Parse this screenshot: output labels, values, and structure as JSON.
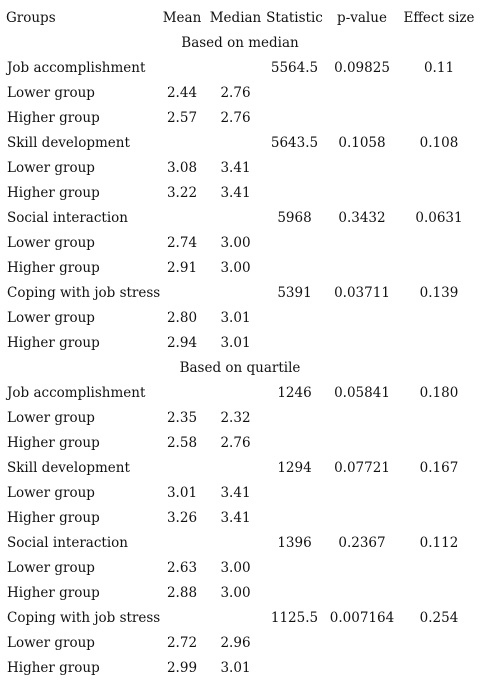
{
  "headers": [
    "Groups",
    "Mean",
    "Median",
    "Statistic",
    "p-value",
    "Effect size"
  ],
  "sections": [
    {
      "title": "Based on median",
      "factors": [
        {
          "name": "Job accomplishment",
          "statistic": "5564.5",
          "p_value": "0.09825",
          "effect_size": "0.11",
          "groups": [
            {
              "label": "Lower group",
              "mean": "2.44",
              "median": "2.76"
            },
            {
              "label": "Higher group",
              "mean": "2.57",
              "median": "2.76"
            }
          ]
        },
        {
          "name": "Skill development",
          "statistic": "5643.5",
          "p_value": "0.1058",
          "effect_size": "0.108",
          "groups": [
            {
              "label": "Lower group",
              "mean": "3.08",
              "median": "3.41"
            },
            {
              "label": "Higher group",
              "mean": "3.22",
              "median": "3.41"
            }
          ]
        },
        {
          "name": "Social interaction",
          "statistic": "5968",
          "p_value": "0.3432",
          "effect_size": "0.0631",
          "groups": [
            {
              "label": "Lower group",
              "mean": "2.74",
              "median": "3.00"
            },
            {
              "label": "Higher group",
              "mean": "2.91",
              "median": "3.00"
            }
          ]
        },
        {
          "name": "Coping with job stress",
          "statistic": "5391",
          "p_value": "0.03711",
          "effect_size": "0.139",
          "groups": [
            {
              "label": "Lower group",
              "mean": "2.80",
              "median": "3.01"
            },
            {
              "label": "Higher group",
              "mean": "2.94",
              "median": "3.01"
            }
          ]
        }
      ]
    },
    {
      "title": "Based on quartile",
      "factors": [
        {
          "name": "Job accomplishment",
          "statistic": "1246",
          "p_value": "0.05841",
          "effect_size": "0.180",
          "groups": [
            {
              "label": "Lower group",
              "mean": "2.35",
              "median": "2.32"
            },
            {
              "label": "Higher group",
              "mean": "2.58",
              "median": "2.76"
            }
          ]
        },
        {
          "name": "Skill development",
          "statistic": "1294",
          "p_value": "0.07721",
          "effect_size": "0.167",
          "groups": [
            {
              "label": "Lower group",
              "mean": "3.01",
              "median": "3.41"
            },
            {
              "label": "Higher group",
              "mean": "3.26",
              "median": "3.41"
            }
          ]
        },
        {
          "name": "Social interaction",
          "statistic": "1396",
          "p_value": "0.2367",
          "effect_size": "0.112",
          "groups": [
            {
              "label": "Lower group",
              "mean": "2.63",
              "median": "3.00"
            },
            {
              "label": "Higher group",
              "mean": "2.88",
              "median": "3.00"
            }
          ]
        },
        {
          "name": "Coping with job stress",
          "statistic": "1125.5",
          "p_value": "0.007164",
          "effect_size": "0.254",
          "groups": [
            {
              "label": "Lower group",
              "mean": "2.72",
              "median": "2.96"
            },
            {
              "label": "Higher group",
              "mean": "2.99",
              "median": "3.01"
            }
          ]
        }
      ]
    }
  ]
}
